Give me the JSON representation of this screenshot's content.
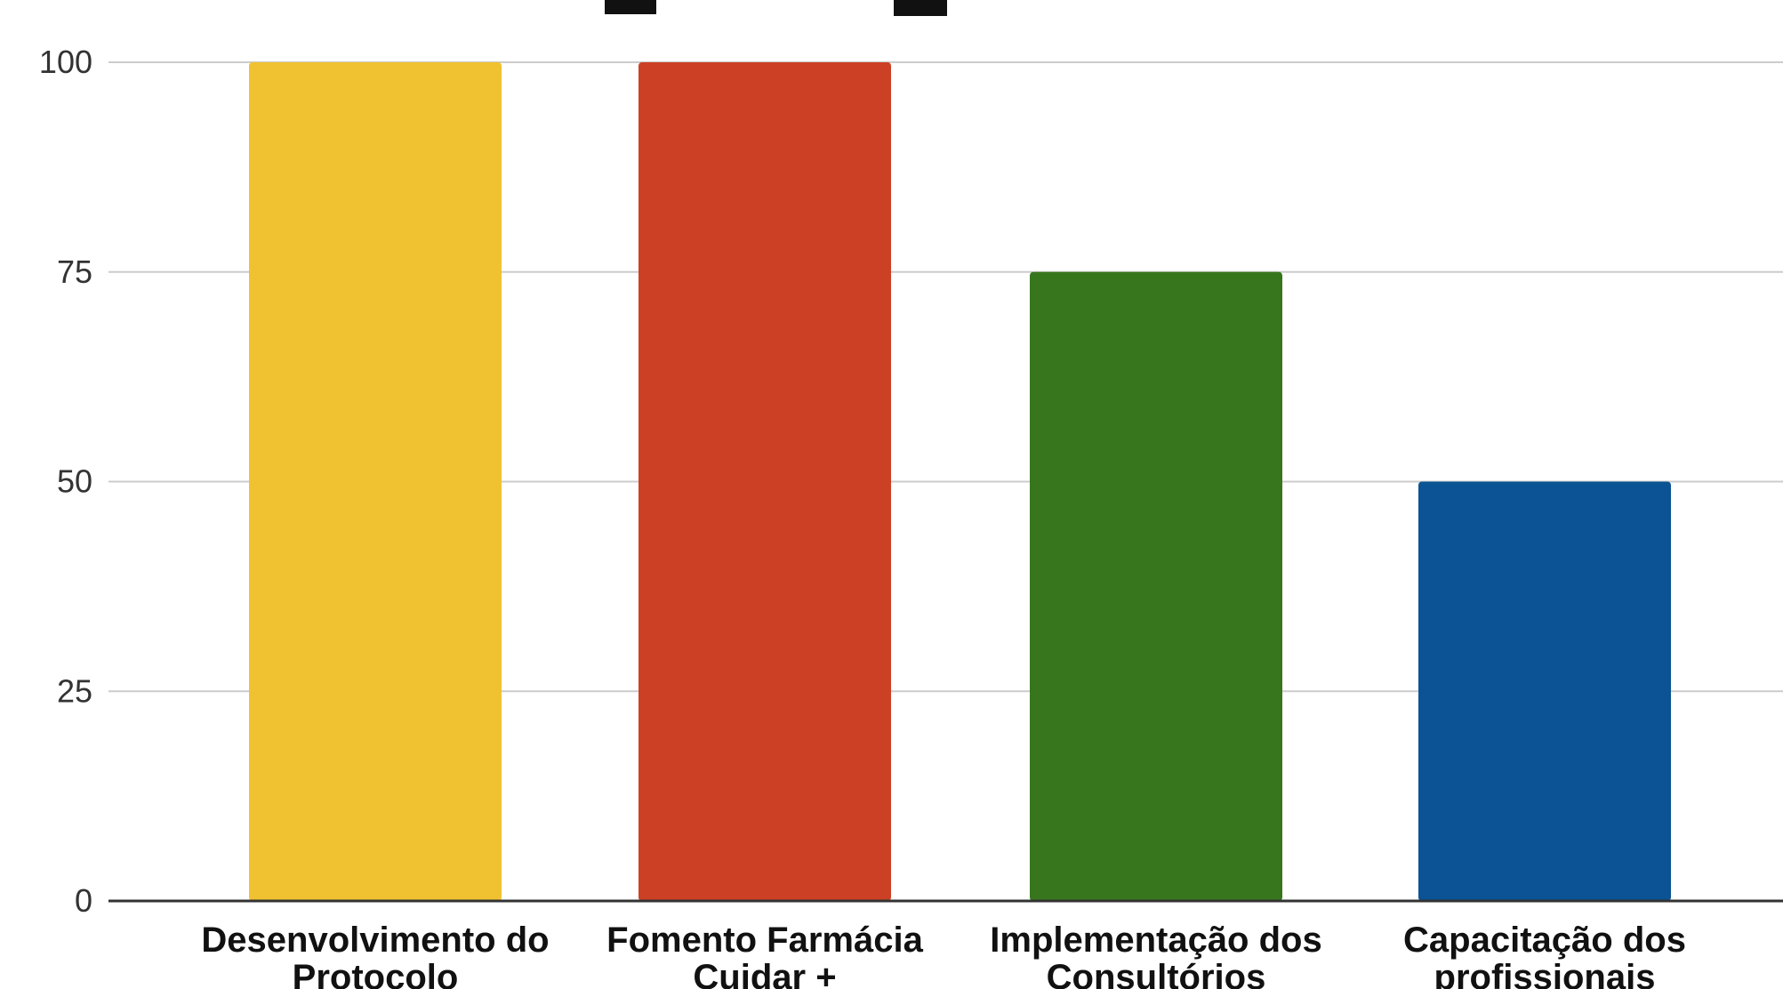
{
  "chart_data": {
    "type": "bar",
    "categories": [
      [
        "Desenvolvimento do",
        "Protocolo"
      ],
      [
        "Fomento Farmácia",
        "Cuidar +"
      ],
      [
        "Implementação dos",
        "Consultórios"
      ],
      [
        "Capacitação dos",
        "profissionais"
      ]
    ],
    "values": [
      100,
      100,
      75,
      50
    ],
    "ylim": [
      0,
      100
    ],
    "yticks": [
      0,
      25,
      50,
      75,
      100
    ],
    "grid": true,
    "legend": "none",
    "colors": [
      "#f0c231",
      "#cc4125",
      "#38761d",
      "#0b5394"
    ]
  },
  "colors": {
    "gridline": "#cccccc",
    "axis": "#333333"
  }
}
